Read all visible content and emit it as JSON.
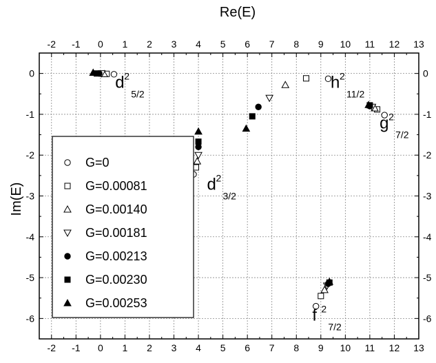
{
  "chart_data": {
    "type": "scatter",
    "xlabel": "Re(E)",
    "ylabel": "Im(E)",
    "xlim": [
      -2.5,
      13
    ],
    "ylim": [
      -6.5,
      0.5
    ],
    "x_ticks": [
      -2,
      -1,
      0,
      1,
      2,
      3,
      4,
      5,
      6,
      7,
      8,
      9,
      10,
      11,
      12,
      13
    ],
    "y_ticks": [
      0,
      -1,
      -2,
      -3,
      -4,
      -5,
      -6
    ],
    "grid": true,
    "axes_mirrored": "x ticks labeled on top and bottom, y ticks labeled on left and right",
    "legend_position": "lower-left",
    "series": [
      {
        "name": "G=0",
        "marker": "open-circle",
        "x": [
          0.55,
          3.8,
          9.3,
          11.6,
          8.8
        ],
        "y": [
          -0.02,
          -2.47,
          -0.13,
          -1.02,
          -5.7
        ]
      },
      {
        "name": "G=0.00081",
        "marker": "open-square",
        "x": [
          0.25,
          3.9,
          8.4,
          11.3,
          9.0
        ],
        "y": [
          -0.01,
          -2.3,
          -0.12,
          -0.88,
          -5.45
        ]
      },
      {
        "name": "G=0.00140",
        "marker": "open-triangle-up",
        "x": [
          0.15,
          3.95,
          7.55,
          11.2,
          9.15
        ],
        "y": [
          -0.01,
          -2.15,
          -0.28,
          -0.85,
          -5.3
        ]
      },
      {
        "name": "G=0.00181",
        "marker": "open-triangle-down",
        "x": [
          0.05,
          4.0,
          6.9,
          11.1,
          9.25
        ],
        "y": [
          0.0,
          -2.0,
          -0.6,
          -0.82,
          -5.2
        ]
      },
      {
        "name": "G=0.00213",
        "marker": "filled-circle",
        "x": [
          -0.05,
          4.0,
          6.45,
          11.0,
          9.3
        ],
        "y": [
          0.0,
          -1.8,
          -0.82,
          -0.8,
          -5.15
        ]
      },
      {
        "name": "G=0.00230",
        "marker": "filled-square",
        "x": [
          -0.15,
          4.0,
          6.2,
          11.0,
          9.35
        ],
        "y": [
          0.0,
          -1.67,
          -1.05,
          -0.78,
          -5.12
        ]
      },
      {
        "name": "G=0.00253",
        "marker": "filled-triangle-up",
        "x": [
          -0.3,
          4.0,
          5.95,
          10.95,
          9.35
        ],
        "y": [
          0.02,
          -1.42,
          -1.35,
          -0.77,
          -5.1
        ]
      }
    ],
    "annotations": [
      {
        "main": "d",
        "sup": "2",
        "sub": "5/2",
        "x": 0.6,
        "y": -0.35
      },
      {
        "main": "h",
        "sup": "2",
        "sub": "11/2",
        "x": 9.4,
        "y": -0.35
      },
      {
        "main": "g",
        "sup": "2",
        "sub": "7/2",
        "x": 11.4,
        "y": -1.35
      },
      {
        "main": "d",
        "sup": "2",
        "sub": "3/2",
        "x": 4.35,
        "y": -2.85
      },
      {
        "main": "f",
        "sup": "2",
        "sub": "7/2",
        "x": 8.65,
        "y": -6.05
      }
    ]
  }
}
